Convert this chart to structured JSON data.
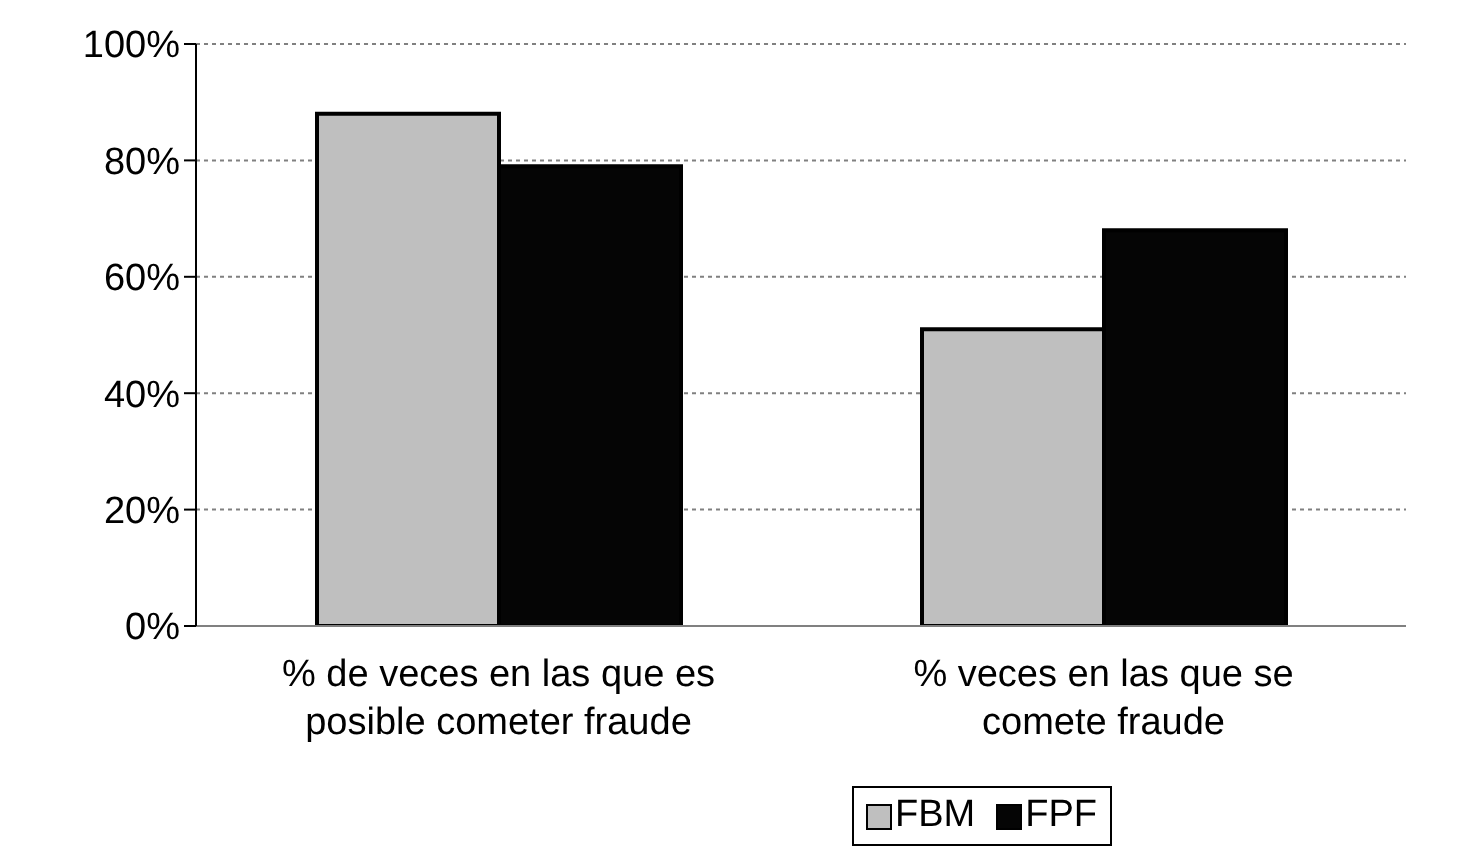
{
  "chart_data": {
    "type": "bar",
    "categories": [
      "% de veces en las que es posible cometer fraude",
      "% veces en las que se comete fraude"
    ],
    "series": [
      {
        "name": "FBM",
        "color": "#bfbfbf",
        "values": [
          88,
          51
        ]
      },
      {
        "name": "FPF",
        "color": "#050505",
        "values": [
          79,
          68
        ]
      }
    ],
    "ylim": [
      0,
      100
    ],
    "yticks": [
      {
        "value": 0,
        "label": "0%"
      },
      {
        "value": 20,
        "label": "20%"
      },
      {
        "value": 40,
        "label": "40%"
      },
      {
        "value": 60,
        "label": "60%"
      },
      {
        "value": 80,
        "label": "80%"
      },
      {
        "value": 100,
        "label": "100%"
      }
    ],
    "grid": "y",
    "legend": "bottom"
  }
}
